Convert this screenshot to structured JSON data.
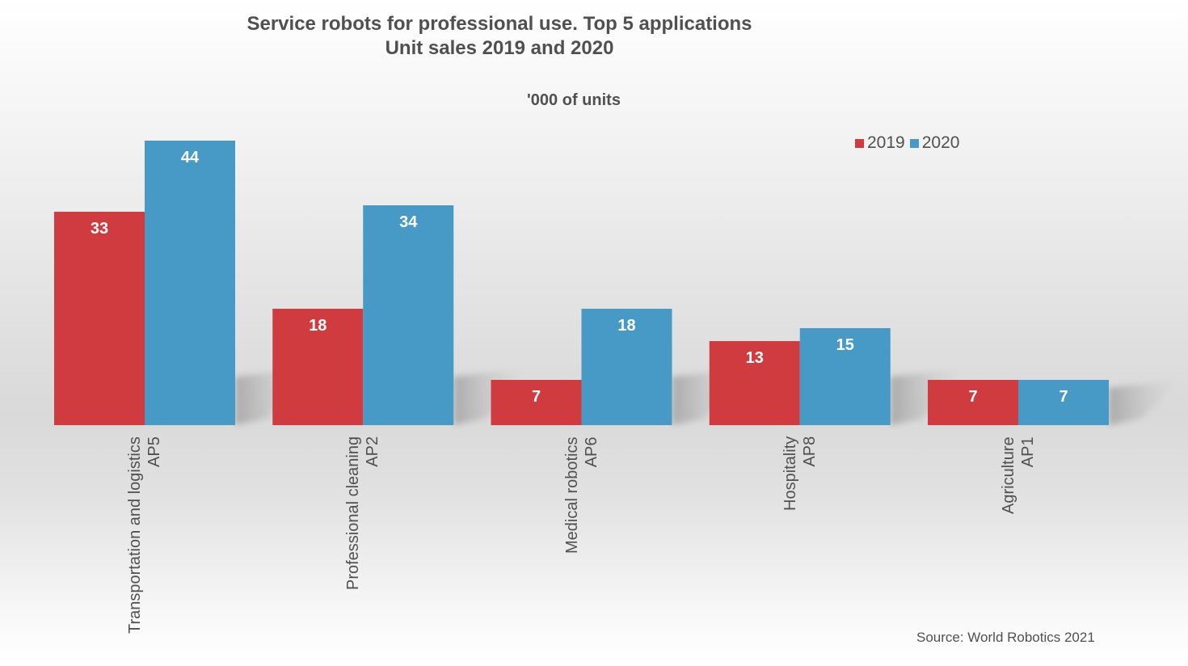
{
  "chart_data": {
    "type": "bar",
    "title": "Service robots for professional use. Top 5 applications",
    "subtitle": "Unit sales 2019 and 2020",
    "ylabel": "'000 of units",
    "xlabel": "",
    "categories": [
      {
        "name": "Transportation and logistics",
        "code": "AP5"
      },
      {
        "name": "Professional cleaning",
        "code": "AP2"
      },
      {
        "name": "Medical robotics",
        "code": "AP6"
      },
      {
        "name": "Hospitality",
        "code": "AP8"
      },
      {
        "name": "Agriculture",
        "code": "AP1"
      }
    ],
    "series": [
      {
        "name": "2019",
        "color": "#cf3b3f",
        "values": [
          33,
          18,
          7,
          13,
          7
        ]
      },
      {
        "name": "2020",
        "color": "#4799c6",
        "values": [
          44,
          34,
          18,
          15,
          7
        ]
      }
    ],
    "ylim": [
      0,
      44
    ],
    "grid": false,
    "legend_position": "top-right",
    "data_labels": true
  },
  "source": "Source: World Robotics 2021"
}
